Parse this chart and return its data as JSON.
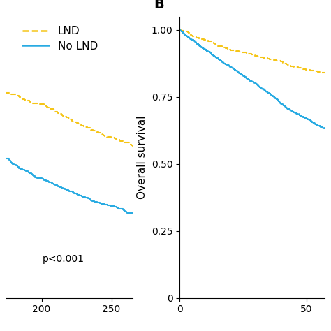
{
  "panel_b_label": "B",
  "ylabel": "Overall survival",
  "ylim": [
    0,
    1.05
  ],
  "xlim_a": [
    175,
    265
  ],
  "xlim_b": [
    0,
    57
  ],
  "yticks_b": [
    0,
    0.25,
    0.5,
    0.75,
    1.0
  ],
  "xticks_a": [
    200,
    250
  ],
  "xticks_b": [
    0,
    50
  ],
  "lnd_color": "#F5C518",
  "no_lnd_color": "#29ABE2",
  "lnd_label": "LND",
  "no_lnd_label": "No LND",
  "pvalue_text": "p<0.001",
  "background_color": "#ffffff",
  "label_fontsize": 11,
  "tick_fontsize": 10,
  "legend_fontsize": 11,
  "panel_fontsize": 14
}
